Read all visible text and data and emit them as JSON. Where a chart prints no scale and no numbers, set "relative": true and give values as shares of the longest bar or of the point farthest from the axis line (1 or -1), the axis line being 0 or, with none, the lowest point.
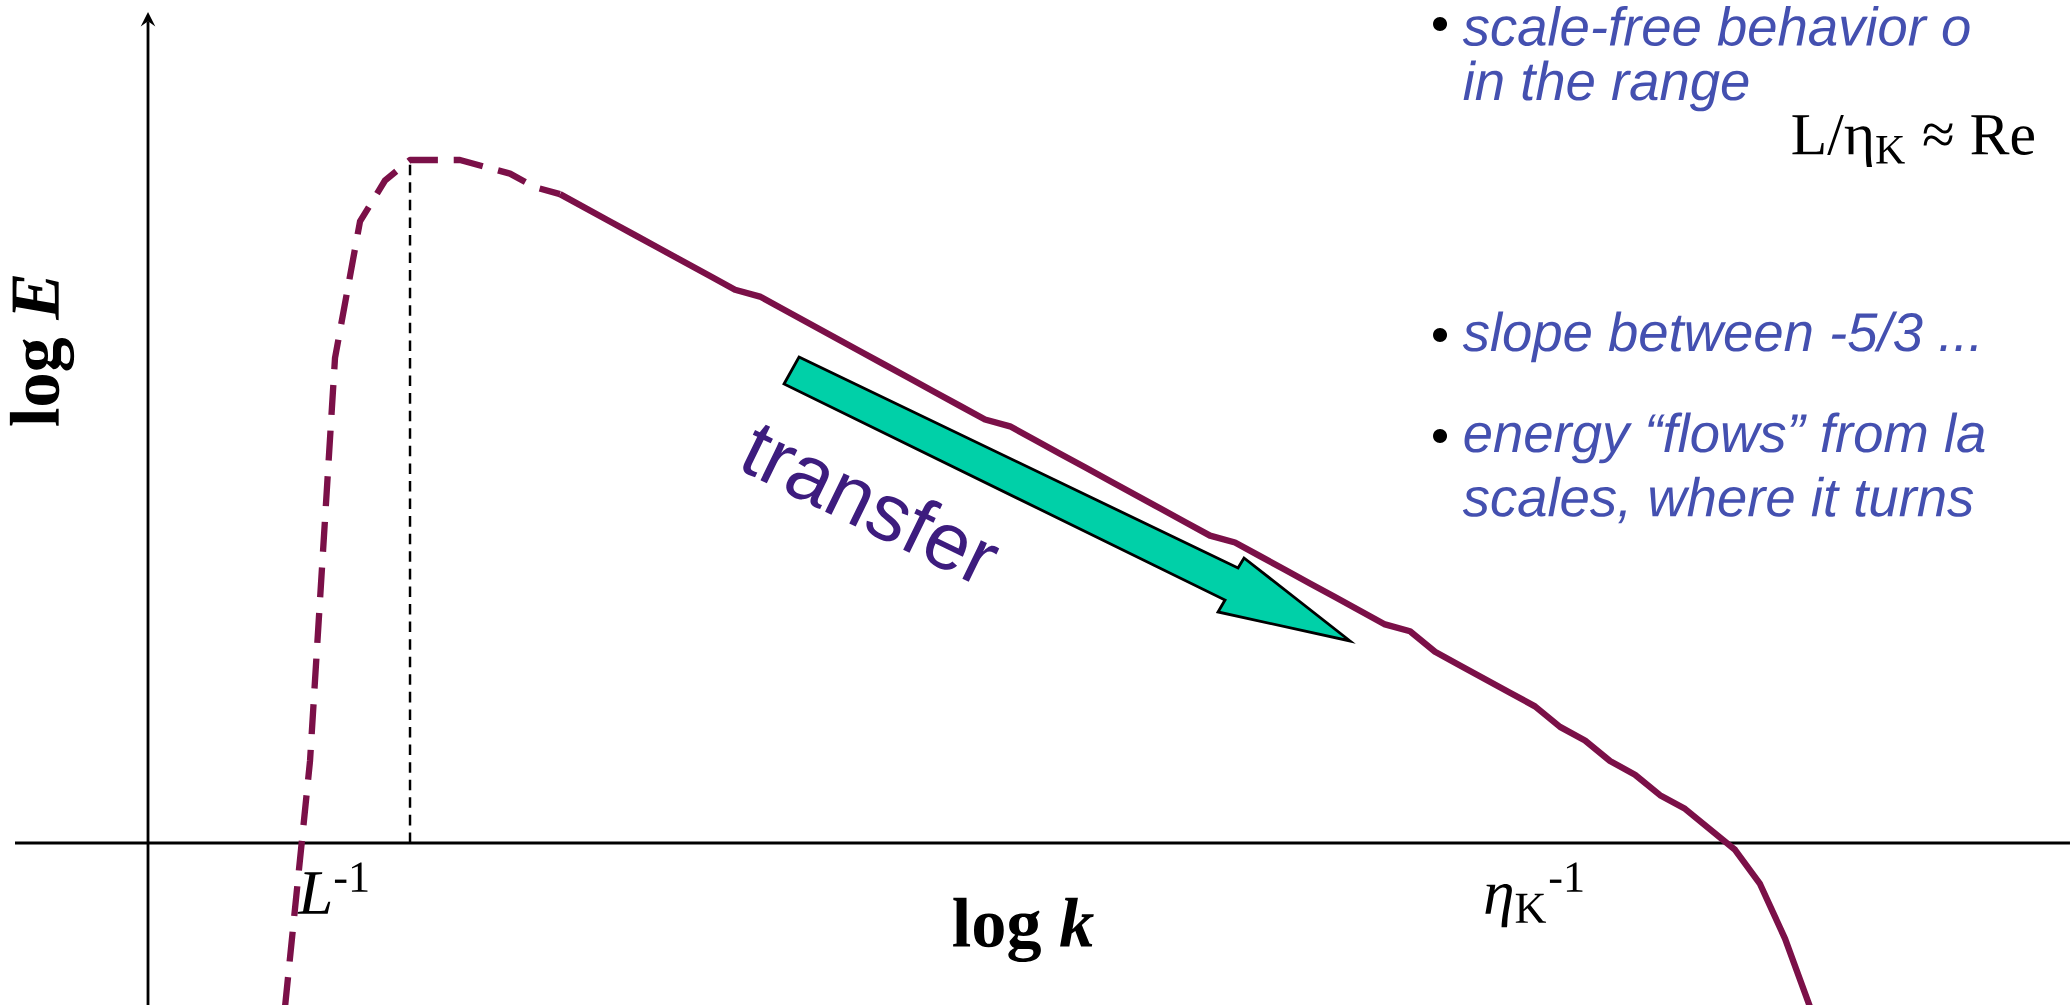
{
  "chart_data": {
    "type": "line",
    "relative": true,
    "xlabel": "log *k*",
    "ylabel": "log *E*",
    "categories": [
      null,
      null,
      "*L*$^{-1}$",
      null,
      null,
      null,
      null,
      null,
      null,
      null,
      null,
      null,
      null,
      null,
      null,
      null,
      null,
      null,
      null,
      null,
      null,
      null,
      null,
      null,
      null,
      null,
      null,
      null,
      null,
      null,
      null,
      null,
      null,
      null,
      null,
      null,
      null,
      null,
      null,
      null,
      null,
      null,
      null,
      null,
      null,
      null,
      null,
      null,
      null,
      null,
      "*η*$_{K}$$^{-1}$",
      null,
      null,
      null,
      null,
      null,
      null,
      null,
      null,
      null,
      null,
      null
    ],
    "series": [
      {
        "color": "#7b1048",
        "line_style": "dashed",
        "values": [
          -0.24,
          0.12,
          0.71,
          0.91,
          0.97,
          1.0,
          1.0,
          1.0,
          0.99,
          0.98,
          0.96,
          0.95,
          null,
          null,
          null,
          null,
          null,
          null,
          null,
          null,
          null,
          null,
          null,
          null,
          null,
          null,
          null,
          null,
          null,
          null,
          null,
          null,
          null,
          null,
          null,
          null,
          null,
          null,
          null,
          null,
          null,
          null,
          null,
          null,
          null,
          null,
          null,
          null,
          null,
          null,
          null,
          null,
          null,
          null,
          null,
          null,
          null,
          null,
          null,
          null,
          null,
          null
        ]
      },
      {
        "color": "#7b1048",
        "line_style": "solid",
        "values": [
          null,
          null,
          null,
          null,
          null,
          null,
          null,
          null,
          null,
          null,
          null,
          0.95,
          0.93,
          0.91,
          0.89,
          0.87,
          0.85,
          0.83,
          0.81,
          0.8,
          0.78,
          0.76,
          0.74,
          0.72,
          0.7,
          0.68,
          0.66,
          0.64,
          0.62,
          0.61,
          0.59,
          0.57,
          0.55,
          0.53,
          0.51,
          0.49,
          0.47,
          0.45,
          0.44,
          0.42,
          0.4,
          0.38,
          0.36,
          0.34,
          0.32,
          0.31,
          0.28,
          0.26,
          0.24,
          0.22,
          0.2,
          0.17,
          0.15,
          0.12,
          0.1,
          0.07,
          0.05,
          0.02,
          -0.01,
          -0.06,
          -0.14,
          -0.24
        ]
      }
    ],
    "annotations": [
      "transfer",
      "scale-free behavior o",
      "in the range",
      "L/η$_{K}$ ≈ Re",
      "slope between -5/3 ...",
      "energy “flows” from la",
      "scales, where it turns"
    ]
  }
}
